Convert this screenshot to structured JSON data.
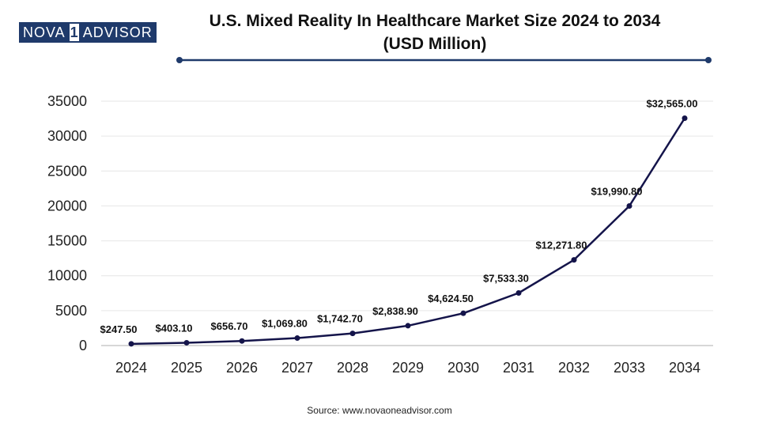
{
  "brand": {
    "part1": "NOVA",
    "part2": "1",
    "part3": "ADVISOR"
  },
  "title": {
    "line1": "U.S. Mixed Reality In Healthcare Market Size 2024 to 2034",
    "line2": "(USD Million)"
  },
  "source": "Source: www.novaoneadvisor.com",
  "colors": {
    "line": "#14144a",
    "brand": "#1f3a6b",
    "decor": "#1f3a6b"
  },
  "chart_data": {
    "type": "line",
    "title": "U.S. Mixed Reality In Healthcare Market Size 2024 to 2034 (USD Million)",
    "xlabel": "",
    "ylabel": "",
    "x": [
      "2024",
      "2025",
      "2026",
      "2027",
      "2028",
      "2029",
      "2030",
      "2031",
      "2032",
      "2033",
      "2034"
    ],
    "values": [
      247.5,
      403.1,
      656.7,
      1069.8,
      1742.7,
      2838.9,
      4624.5,
      7533.3,
      12271.8,
      19990.8,
      32565.0
    ],
    "labels": [
      "$247.50",
      "$403.10",
      "$656.70",
      "$1,069.80",
      "$1,742.70",
      "$2,838.90",
      "$4,624.50",
      "$7,533.30",
      "$12,271.80",
      "$19,990.80",
      "$32,565.00"
    ],
    "ylim": [
      0,
      35000
    ],
    "yticks": [
      "0",
      "5000",
      "10000",
      "15000",
      "20000",
      "25000",
      "30000",
      "35000"
    ],
    "grid": true,
    "legend": "none"
  }
}
